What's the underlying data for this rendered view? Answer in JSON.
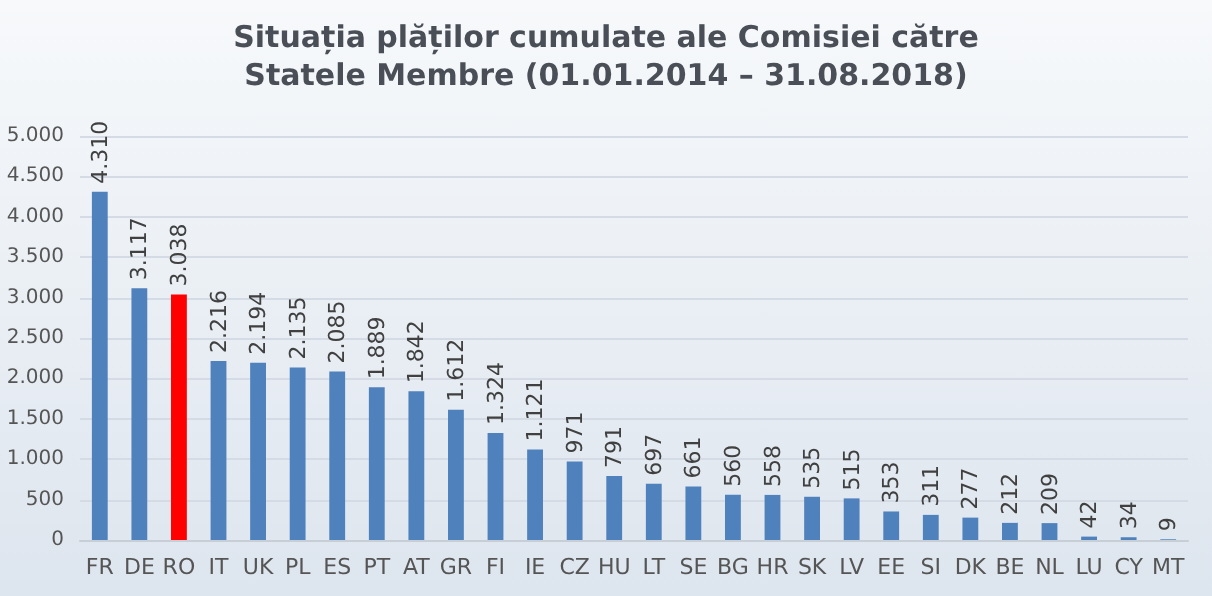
{
  "chart_data": {
    "type": "bar",
    "title": "Situația plăților cumulate ale Comisiei către\nStatele Membre (01.01.2014 – 31.08.2018)",
    "categories": [
      "FR",
      "DE",
      "RO",
      "IT",
      "UK",
      "PL",
      "ES",
      "PT",
      "AT",
      "GR",
      "FI",
      "IE",
      "CZ",
      "HU",
      "LT",
      "SE",
      "BG",
      "HR",
      "SK",
      "LV",
      "EE",
      "SI",
      "DK",
      "BE",
      "NL",
      "LU",
      "CY",
      "MT"
    ],
    "values": [
      4310,
      3117,
      3038,
      2216,
      2194,
      2135,
      2085,
      1889,
      1842,
      1612,
      1324,
      1121,
      971,
      791,
      697,
      661,
      560,
      558,
      535,
      515,
      353,
      311,
      277,
      212,
      209,
      42,
      34,
      9
    ],
    "value_labels": [
      "4.310",
      "3.117",
      "3.038",
      "2.216",
      "2.194",
      "2.135",
      "2.085",
      "1.889",
      "1.842",
      "1.612",
      "1.324",
      "1.121",
      "971",
      "791",
      "697",
      "661",
      "560",
      "558",
      "535",
      "515",
      "353",
      "311",
      "277",
      "212",
      "209",
      "42",
      "34",
      "9"
    ],
    "colors": [
      "#4f81bd",
      "#4f81bd",
      "#ff0000",
      "#4f81bd",
      "#4f81bd",
      "#4f81bd",
      "#4f81bd",
      "#4f81bd",
      "#4f81bd",
      "#4f81bd",
      "#4f81bd",
      "#4f81bd",
      "#4f81bd",
      "#4f81bd",
      "#4f81bd",
      "#4f81bd",
      "#4f81bd",
      "#4f81bd",
      "#4f81bd",
      "#4f81bd",
      "#4f81bd",
      "#4f81bd",
      "#4f81bd",
      "#4f81bd",
      "#4f81bd",
      "#4f81bd",
      "#4f81bd",
      "#4f81bd"
    ],
    "ylim": [
      0,
      5000
    ],
    "yticks": [
      {
        "value": 0,
        "label": "0"
      },
      {
        "value": 500,
        "label": "500"
      },
      {
        "value": 1000,
        "label": "1.000"
      },
      {
        "value": 1500,
        "label": "1.500"
      },
      {
        "value": 2000,
        "label": "2.000"
      },
      {
        "value": 2500,
        "label": "2.500"
      },
      {
        "value": 3000,
        "label": "3.000"
      },
      {
        "value": 3500,
        "label": "3.500"
      },
      {
        "value": 4000,
        "label": "4.000"
      },
      {
        "value": 4500,
        "label": "4.500"
      },
      {
        "value": 5000,
        "label": "5.000"
      }
    ],
    "grid": "y"
  }
}
